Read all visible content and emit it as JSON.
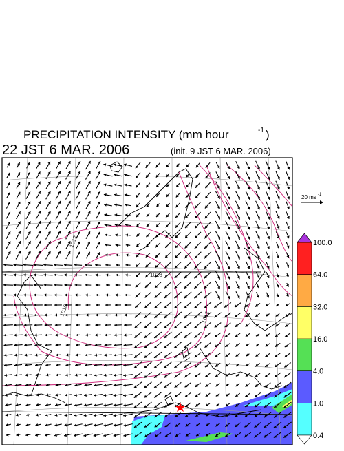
{
  "header": {
    "title": "PRECIPITATION INTENSITY (mm hour",
    "title_exponent": "-1",
    "title_close": ")",
    "valid_time": "22 JST 6 MAR. 2006",
    "init_time": "(init. 9 JST 6 MAR. 2006)"
  },
  "wind_scale": {
    "label": "20 ms",
    "exponent": "-1"
  },
  "contour_labels": [
    "1012",
    "1016",
    "1018",
    "1012"
  ],
  "colorbar": {
    "labels": [
      "0.4",
      "1.0",
      "4.0",
      "16.0",
      "32.0",
      "64.0",
      "100.0"
    ],
    "colors": [
      "#55ffff",
      "#5b5bff",
      "#55e055",
      "#ffff66",
      "#ffaa44",
      "#ff2020"
    ],
    "over_color": "#aa33dd",
    "under_color": "#ffffff"
  }
}
